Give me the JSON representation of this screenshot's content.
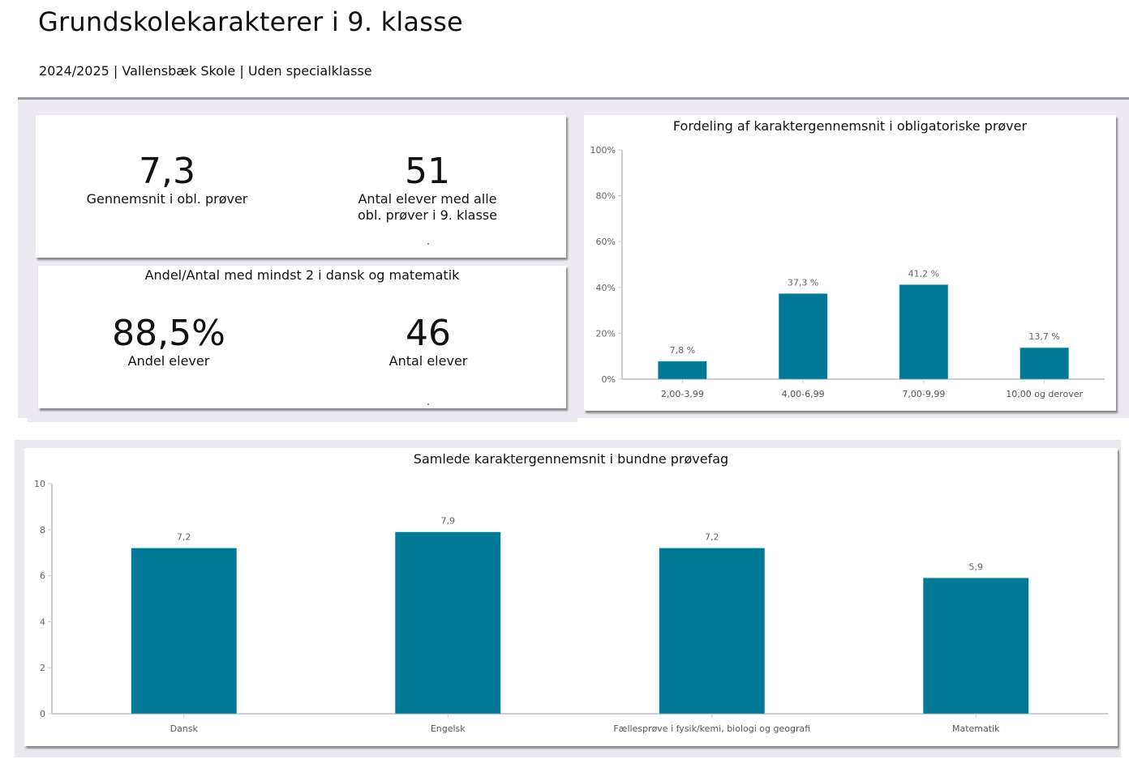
{
  "header": {
    "title": "Grundskolekarakterer i 9. klasse",
    "subtitle": "2024/2025 | Vallensbæk Skole | Uden specialklasse"
  },
  "kpis": {
    "average": {
      "value": "7,3",
      "label": "Gennemsnit i obl. prøver"
    },
    "students": {
      "value": "51",
      "label_line1": "Antal elever med alle",
      "label_line2": "obl. prøver i 9. klasse"
    }
  },
  "kpis2": {
    "title": "Andel/Antal med mindst 2 i dansk og matematik",
    "share": {
      "value": "88,5%",
      "label": "Andel elever"
    },
    "count": {
      "value": "46",
      "label": "Antal elever"
    }
  },
  "colors": {
    "bar": "#007896",
    "axis": "#c8ced4",
    "tick_text": "#666666",
    "panel_bg": "#ede9f0"
  },
  "chart_data": [
    {
      "type": "bar",
      "title": "Fordeling af karaktergennemsnit i obligatoriske prøver",
      "categories": [
        "2,00-3,99",
        "4,00-6,99",
        "7,00-9,99",
        "10,00 og derover"
      ],
      "values": [
        7.8,
        37.3,
        41.2,
        13.7
      ],
      "value_labels": [
        "7,8 %",
        "37,3 %",
        "41,2 %",
        "13,7 %"
      ],
      "ylim": [
        0,
        100
      ],
      "yticks": [
        0,
        20,
        40,
        60,
        80,
        100
      ],
      "ytick_labels": [
        "0%",
        "20%",
        "40%",
        "60%",
        "80%",
        "100%"
      ],
      "xlabel": "",
      "ylabel": "",
      "grid": false
    },
    {
      "type": "bar",
      "title": "Samlede karaktergennemsnit i bundne prøvefag",
      "categories": [
        "Dansk",
        "Engelsk",
        "Fællesprøve i fysik/kemi, biologi og geografi",
        "Matematik"
      ],
      "values": [
        7.2,
        7.9,
        7.2,
        5.9
      ],
      "value_labels": [
        "7,2",
        "7,9",
        "7,2",
        "5,9"
      ],
      "ylim": [
        0,
        10
      ],
      "yticks": [
        0,
        2,
        4,
        6,
        8,
        10
      ],
      "ytick_labels": [
        "0",
        "2",
        "4",
        "6",
        "8",
        "10"
      ],
      "xlabel": "",
      "ylabel": "",
      "grid": false
    }
  ]
}
